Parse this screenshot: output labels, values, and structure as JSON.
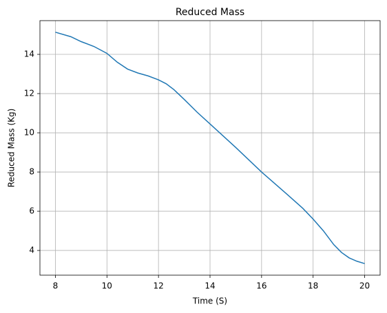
{
  "chart_data": {
    "type": "line",
    "title": "Reduced Mass",
    "x_label": "Time (S)",
    "y_label": "Reduced Mass (Kg)",
    "x": [
      8.0,
      8.6,
      9.0,
      9.5,
      10.0,
      10.4,
      10.8,
      11.2,
      11.6,
      12.0,
      12.3,
      12.6,
      13.0,
      13.5,
      14.0,
      15.0,
      16.0,
      17.0,
      17.6,
      18.0,
      18.4,
      18.8,
      19.1,
      19.4,
      19.7,
      20.0
    ],
    "series": [
      {
        "name": "Reduced Mass",
        "color": "#1f77b4",
        "values": [
          15.13,
          14.9,
          14.65,
          14.4,
          14.05,
          13.6,
          13.25,
          13.05,
          12.9,
          12.7,
          12.5,
          12.2,
          11.7,
          11.05,
          10.45,
          9.25,
          8.0,
          6.85,
          6.15,
          5.6,
          5.0,
          4.3,
          3.9,
          3.62,
          3.45,
          3.33
        ]
      }
    ],
    "xlim": [
      7.4,
      20.6
    ],
    "ylim": [
      2.74,
      15.72
    ],
    "xticks": [
      8,
      10,
      12,
      14,
      16,
      18,
      20
    ],
    "yticks": [
      4,
      6,
      8,
      10,
      12,
      14
    ],
    "grid": true
  }
}
